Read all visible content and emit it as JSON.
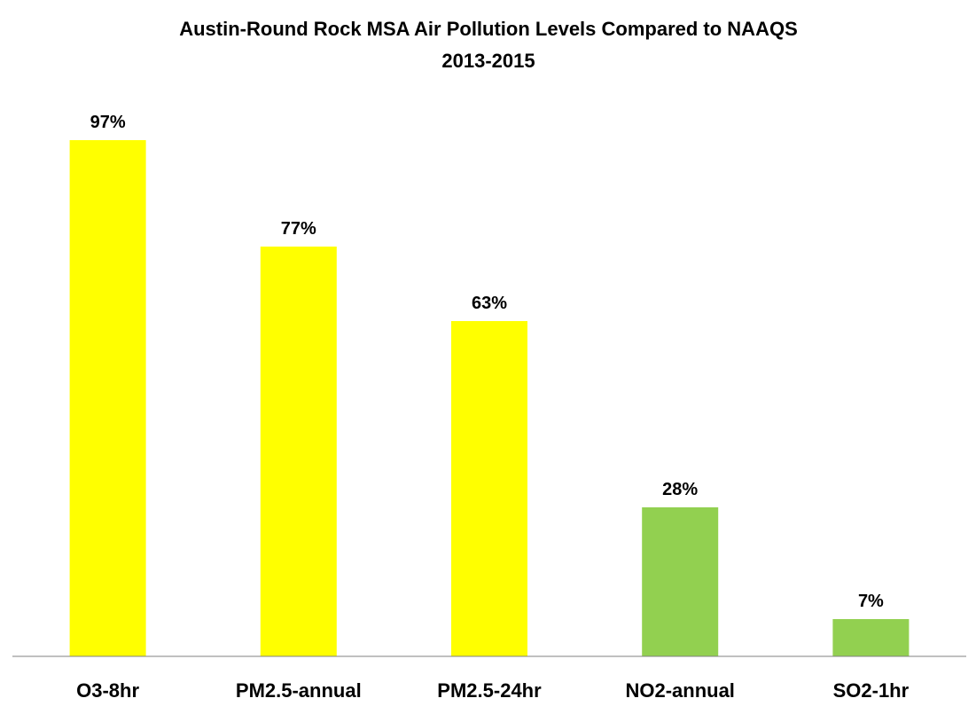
{
  "chart_data": {
    "type": "bar",
    "title": "Austin-Round Rock MSA Air Pollution Levels Compared to NAAQS",
    "subtitle": "2013-2015",
    "xlabel": "",
    "ylabel": "",
    "categories": [
      "O3-8hr",
      "PM2.5-annual",
      "PM2.5-24hr",
      "NO2-annual",
      "SO2-1hr"
    ],
    "values": [
      97,
      77,
      63,
      28,
      7
    ],
    "data_labels": [
      "97%",
      "77%",
      "63%",
      "28%",
      "7%"
    ],
    "bar_colors": [
      "#FFFF00",
      "#FFFF00",
      "#FFFF00",
      "#92D050",
      "#92D050"
    ],
    "unit": "%",
    "ylim": [
      0,
      100
    ],
    "grid": false,
    "legend": "none",
    "axis_color": "#808080"
  }
}
